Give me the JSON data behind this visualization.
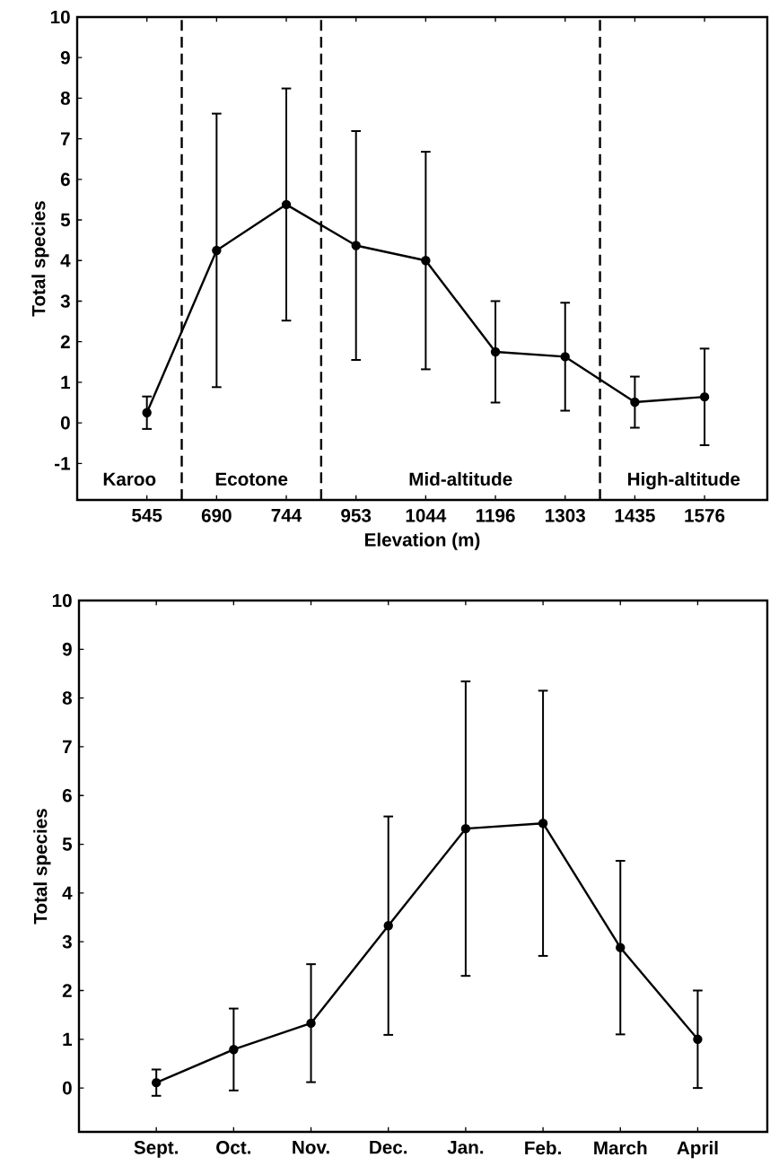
{
  "chart_data": [
    {
      "type": "line",
      "ylabel": "Total species",
      "xlabel": "Elevation (m)",
      "categories": [
        "545",
        "690",
        "744",
        "953",
        "1044",
        "1196",
        "1303",
        "1435",
        "1576"
      ],
      "values": [
        0.25,
        4.25,
        5.38,
        4.37,
        4.0,
        1.75,
        1.63,
        0.51,
        0.64
      ],
      "errors": [
        0.4,
        3.37,
        2.86,
        2.82,
        2.68,
        1.25,
        1.33,
        0.63,
        1.19
      ],
      "color": "#000000",
      "marker": "circle",
      "line_style": "solid",
      "ylim": [
        -1.9,
        10
      ],
      "yticks": [
        -1,
        0,
        1,
        2,
        3,
        4,
        5,
        6,
        7,
        8,
        9,
        10
      ],
      "annotations": [
        "Karoo",
        "Ecotone",
        "Mid-altitude",
        "High-altitude"
      ]
    },
    {
      "type": "line",
      "ylabel": "Total species",
      "categories": [
        "Sept.",
        "Oct.",
        "Nov.",
        "Dec.",
        "Jan.",
        "Feb.",
        "March",
        "April"
      ],
      "values": [
        0.11,
        0.79,
        1.33,
        3.33,
        5.32,
        5.43,
        2.88,
        1.0
      ],
      "errors": [
        0.27,
        0.84,
        1.21,
        2.24,
        3.02,
        2.72,
        1.78,
        1.0
      ],
      "color": "#000000",
      "marker": "circle",
      "line_style": "solid",
      "ylim": [
        -0.9,
        10
      ],
      "yticks": [
        0,
        1,
        2,
        3,
        4,
        5,
        6,
        7,
        8,
        9,
        10
      ]
    }
  ]
}
